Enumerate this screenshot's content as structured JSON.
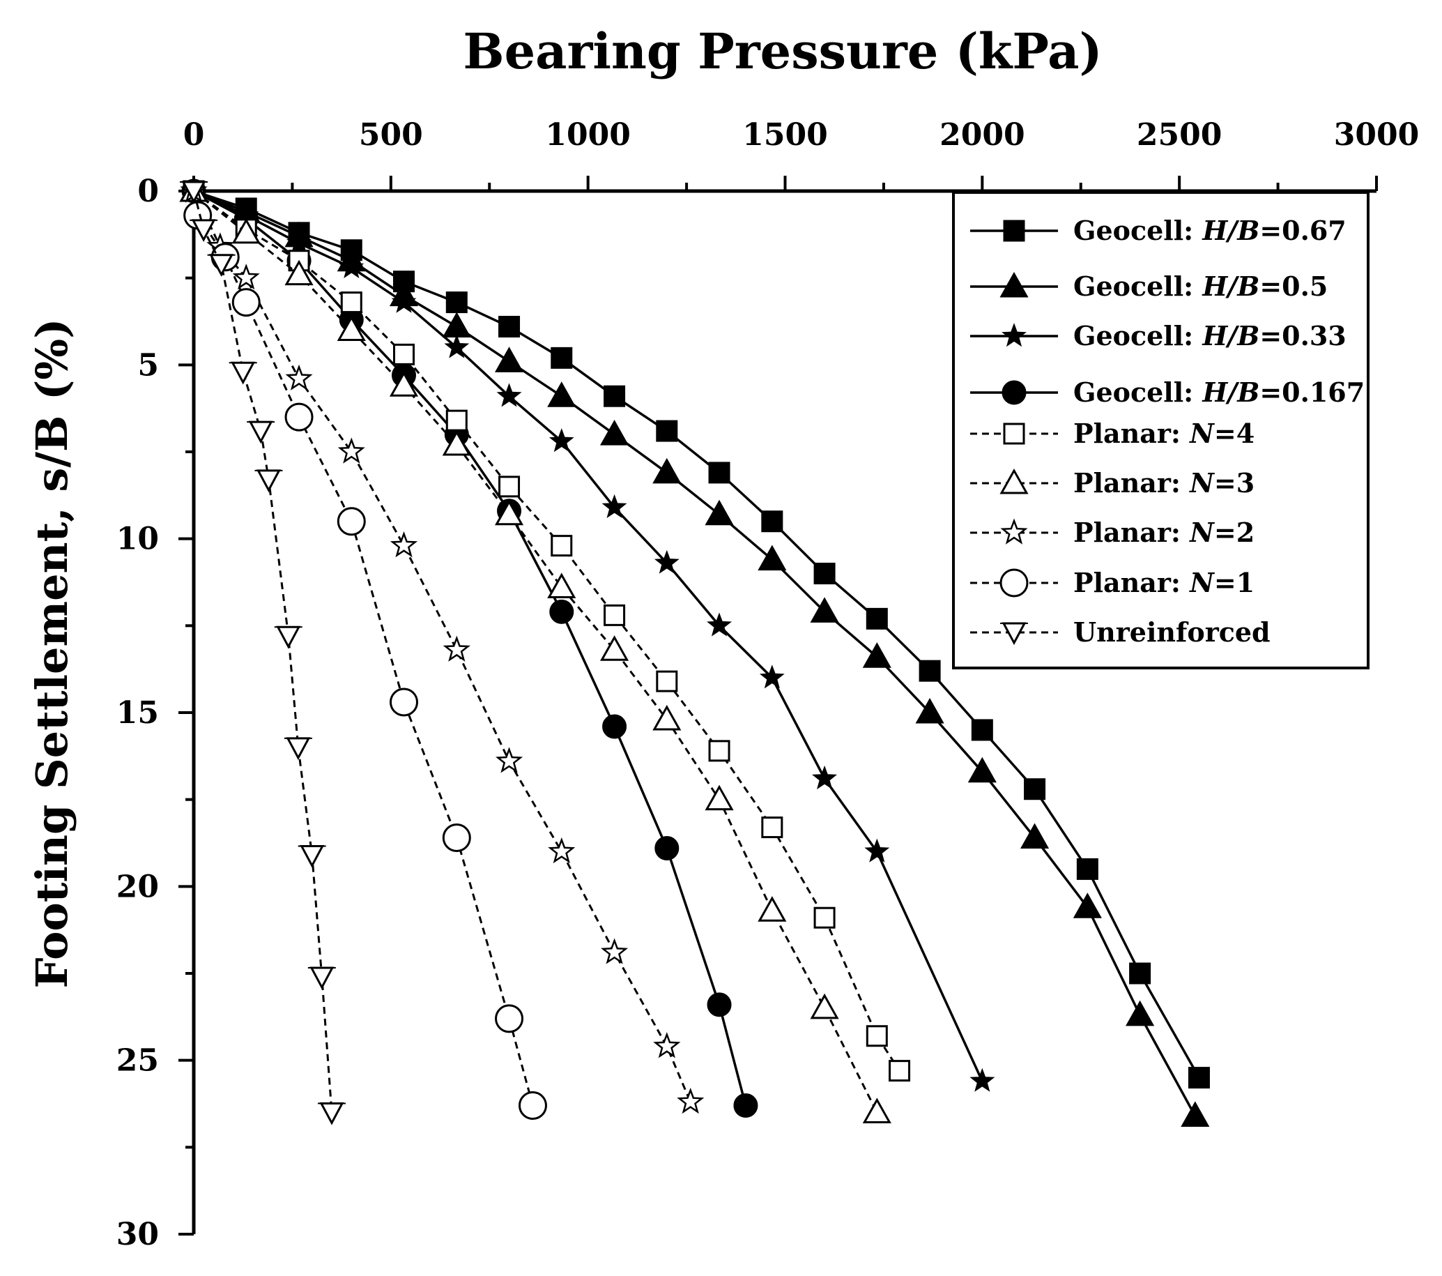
{
  "chart_data": {
    "type": "line",
    "title": "",
    "xlabel": "Bearing Pressure (kPa)",
    "ylabel": "Footing Settlement, s/B (%)",
    "x_axis_position": "top",
    "y_axis_inverted": true,
    "xlim": [
      0,
      3000
    ],
    "ylim": [
      0,
      30
    ],
    "xticks": [
      "0",
      "500",
      "1000",
      "1500",
      "2000",
      "2500",
      "3000"
    ],
    "yticks": [
      "0",
      "5",
      "10",
      "15",
      "20",
      "25",
      "30"
    ],
    "grid": false,
    "legend_position": "top-right",
    "series": [
      {
        "name": "Geocell: H/B=0.67",
        "label_main": "Geocell: ",
        "label_ital": "H/B",
        "label_end": "=0.67",
        "line": "solid",
        "marker": "square-filled",
        "x": [
          0,
          133,
          267,
          400,
          533,
          667,
          800,
          933,
          1067,
          1200,
          1333,
          1467,
          1600,
          1733,
          1867,
          2000,
          2133,
          2267,
          2400,
          2550
        ],
        "y": [
          0,
          0.5,
          1.2,
          1.7,
          2.6,
          3.2,
          3.9,
          4.8,
          5.9,
          6.9,
          8.1,
          9.5,
          11.0,
          12.3,
          13.8,
          15.5,
          17.2,
          19.5,
          22.5,
          25.5
        ]
      },
      {
        "name": "Geocell: H/B=0.5",
        "label_main": "Geocell: ",
        "label_ital": "H/B",
        "label_end": "=0.5",
        "line": "solid",
        "marker": "triangle-up-filled",
        "x": [
          0,
          133,
          267,
          400,
          533,
          667,
          800,
          933,
          1067,
          1200,
          1333,
          1467,
          1600,
          1733,
          1867,
          2000,
          2133,
          2267,
          2400,
          2540
        ],
        "y": [
          0,
          0.6,
          1.3,
          2.0,
          3.0,
          3.9,
          4.9,
          5.9,
          7.0,
          8.1,
          9.3,
          10.6,
          12.1,
          13.4,
          15.0,
          16.7,
          18.6,
          20.6,
          23.7,
          26.6
        ]
      },
      {
        "name": "Geocell: H/B=0.33",
        "label_main": "Geocell: ",
        "label_ital": "H/B",
        "label_end": "=0.33",
        "line": "solid",
        "marker": "star-filled",
        "x": [
          0,
          133,
          267,
          400,
          533,
          667,
          800,
          933,
          1067,
          1200,
          1333,
          1467,
          1600,
          1733,
          2000
        ],
        "y": [
          0,
          0.7,
          1.5,
          2.2,
          3.2,
          4.5,
          5.9,
          7.2,
          9.1,
          10.7,
          12.5,
          14.0,
          16.9,
          19.0,
          25.6
        ]
      },
      {
        "name": "Geocell: H/B=0.167",
        "label_main": "Geocell: ",
        "label_ital": "H/B",
        "label_end": "=0.167",
        "line": "solid",
        "marker": "circle-filled",
        "x": [
          0,
          133,
          267,
          400,
          533,
          667,
          800,
          933,
          1067,
          1200,
          1333,
          1400
        ],
        "y": [
          0,
          0.8,
          2.0,
          3.7,
          5.3,
          7.0,
          9.2,
          12.1,
          15.4,
          18.9,
          23.4,
          26.3
        ]
      },
      {
        "name": "Planar: N=4",
        "label_main": "Planar: ",
        "label_ital": "N",
        "label_end": "=4",
        "line": "dashed",
        "marker": "square-open",
        "x": [
          0,
          133,
          267,
          400,
          533,
          667,
          800,
          933,
          1067,
          1200,
          1333,
          1467,
          1600,
          1733,
          1790
        ],
        "y": [
          0,
          1.1,
          2.0,
          3.2,
          4.7,
          6.6,
          8.5,
          10.2,
          12.2,
          14.1,
          16.1,
          18.3,
          20.9,
          24.3,
          25.3
        ]
      },
      {
        "name": "Planar: N=3",
        "label_main": "Planar: ",
        "label_ital": "N",
        "label_end": "=3",
        "line": "dashed",
        "marker": "triangle-up-open",
        "x": [
          0,
          133,
          267,
          400,
          533,
          667,
          800,
          933,
          1067,
          1200,
          1333,
          1467,
          1600,
          1733
        ],
        "y": [
          0,
          1.2,
          2.4,
          4.0,
          5.6,
          7.3,
          9.3,
          11.4,
          13.2,
          15.2,
          17.5,
          20.7,
          23.5,
          26.5
        ]
      },
      {
        "name": "Planar: N=2",
        "label_main": "Planar: ",
        "label_ital": "N",
        "label_end": "=2",
        "line": "dashed",
        "marker": "star-open",
        "x": [
          0,
          67,
          133,
          267,
          400,
          533,
          667,
          800,
          933,
          1067,
          1200,
          1260
        ],
        "y": [
          0,
          1.6,
          2.5,
          5.4,
          7.5,
          10.2,
          13.2,
          16.4,
          19.0,
          21.9,
          24.6,
          26.2
        ]
      },
      {
        "name": "Planar: N=1",
        "label_main": "Planar: ",
        "label_ital": "N",
        "label_end": "=1",
        "line": "dashed",
        "marker": "circle-open",
        "x": [
          10,
          80,
          133,
          267,
          400,
          533,
          667,
          800,
          860
        ],
        "y": [
          0.7,
          1.9,
          3.2,
          6.5,
          9.5,
          14.7,
          18.6,
          23.8,
          26.3
        ]
      },
      {
        "name": "Unreinforced",
        "label_main": "Unreinforced",
        "label_ital": "",
        "label_end": "",
        "line": "dashed",
        "marker": "triangle-down-open",
        "x": [
          0,
          25,
          70,
          125,
          170,
          190,
          240,
          265,
          300,
          325,
          350
        ],
        "y": [
          0,
          1.1,
          2.1,
          5.2,
          6.9,
          8.3,
          12.8,
          16.0,
          19.1,
          22.6,
          26.5
        ]
      }
    ]
  }
}
